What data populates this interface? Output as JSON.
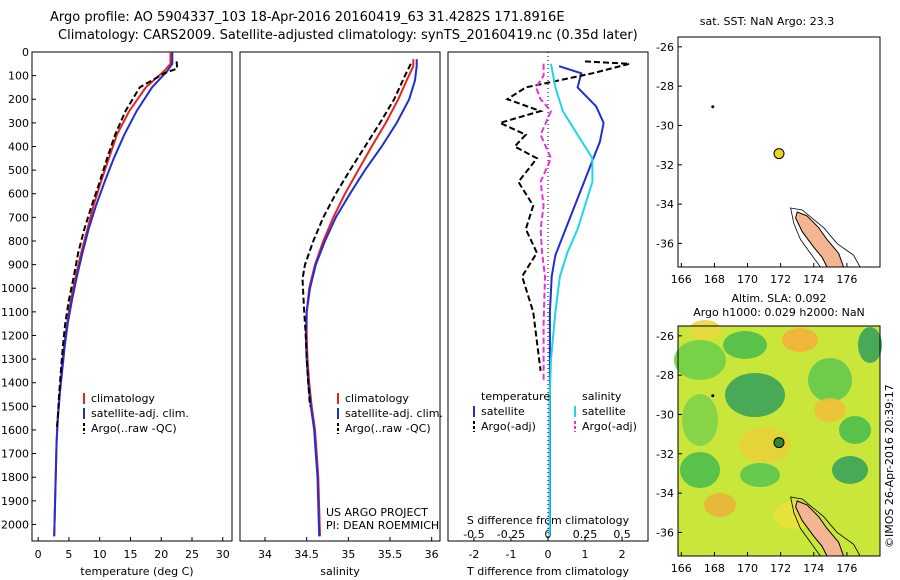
{
  "title": {
    "line1": "Argo profile: AO 5904337_103 18-Apr-2016 20160419_63 31.4282S 171.8916E",
    "line2": "Climatology: CARS2009. Satellite-adjusted climatology: synTS_20160419.nc (0.35d later)"
  },
  "side_label": "©IMOS 26-Apr-2016 20:39:17",
  "colors": {
    "climatology": "#e8231d",
    "satellite": "#1f2fd4",
    "argo": "#000000",
    "sat_salinity": "#1fd6e6",
    "argo_salinity": "#e62ee6",
    "land": "#f3b592"
  },
  "chart_data": [
    {
      "type": "line",
      "id": "temperature",
      "xlabel": "temperature (deg C)",
      "ylabel": "",
      "xlim": [
        -1,
        31.5
      ],
      "ylim": [
        2070,
        0
      ],
      "xticks": [
        0,
        5,
        10,
        15,
        20,
        25,
        30
      ],
      "yticks": [
        0,
        100,
        200,
        300,
        400,
        500,
        600,
        700,
        800,
        900,
        1000,
        1100,
        1200,
        1300,
        1400,
        1500,
        1600,
        1700,
        1800,
        1900,
        2000
      ],
      "legend": [
        "climatology",
        "satellite-adj. clim.",
        "Argo(..raw -QC)"
      ],
      "legend_position": "bottom-center",
      "series": [
        {
          "name": "climatology",
          "style": "solid",
          "color": "#e8231d",
          "x": [
            21.5,
            21.5,
            20.5,
            17.5,
            14.8,
            12.8,
            11.5,
            10.2,
            9.0,
            8.0,
            7.0,
            6.1,
            5.3,
            4.7,
            4.2,
            3.8,
            3.5,
            3.2,
            3.0,
            2.9,
            2.8,
            2.7,
            2.6
          ],
          "y": [
            0,
            50,
            80,
            150,
            250,
            350,
            450,
            550,
            650,
            750,
            850,
            950,
            1050,
            1150,
            1250,
            1350,
            1450,
            1550,
            1650,
            1750,
            1850,
            1950,
            2050
          ]
        },
        {
          "name": "satellite-adj. clim.",
          "style": "solid",
          "color": "#1f2fd4",
          "x": [
            21.8,
            21.8,
            21.0,
            18.5,
            16.0,
            14.0,
            12.3,
            10.8,
            9.4,
            8.2,
            7.2,
            6.3,
            5.5,
            4.8,
            4.3,
            3.9,
            3.5,
            3.2,
            3.0,
            2.9,
            2.8,
            2.7,
            2.6
          ],
          "y": [
            0,
            50,
            80,
            150,
            250,
            350,
            450,
            550,
            650,
            750,
            850,
            950,
            1050,
            1150,
            1250,
            1350,
            1450,
            1550,
            1650,
            1750,
            1850,
            1950,
            2050
          ]
        },
        {
          "name": "Argo(..raw -QC)",
          "style": "dashed",
          "color": "#000000",
          "x": [
            22.5,
            22.6,
            20.5,
            16.5,
            14.2,
            12.5,
            11.2,
            10.0,
            8.7,
            7.5,
            6.5,
            5.8,
            5.0,
            4.4,
            4.0,
            3.7,
            3.4,
            3.2,
            3.0
          ],
          "y": [
            40,
            70,
            90,
            150,
            250,
            350,
            450,
            550,
            650,
            750,
            850,
            950,
            1050,
            1150,
            1250,
            1350,
            1450,
            1550,
            1600
          ]
        }
      ]
    },
    {
      "type": "line",
      "id": "salinity",
      "xlabel": "salinity",
      "xlim": [
        33.7,
        36.1
      ],
      "ylim": [
        2070,
        0
      ],
      "xticks": [
        34,
        34.5,
        35,
        35.5,
        36
      ],
      "legend": [
        "climatology",
        "satellite-adj. clim.",
        "Argo(..raw -QC)"
      ],
      "legend_position": "bottom-center",
      "annotations": [
        "US ARGO PROJECT",
        "PI: DEAN ROEMMICH"
      ],
      "series": [
        {
          "name": "climatology",
          "style": "solid",
          "color": "#e8231d",
          "x": [
            35.78,
            35.78,
            35.7,
            35.6,
            35.45,
            35.28,
            35.12,
            34.96,
            34.82,
            34.7,
            34.6,
            34.53,
            34.5,
            34.5,
            34.51,
            34.53,
            34.56,
            34.6,
            34.62,
            34.64,
            34.66
          ],
          "y": [
            30,
            60,
            120,
            200,
            300,
            400,
            500,
            600,
            700,
            800,
            900,
            1000,
            1100,
            1200,
            1300,
            1400,
            1500,
            1600,
            1700,
            1800,
            2050
          ]
        },
        {
          "name": "satellite-adj. clim.",
          "style": "solid",
          "color": "#1f2fd4",
          "x": [
            35.82,
            35.82,
            35.8,
            35.73,
            35.58,
            35.4,
            35.2,
            35.02,
            34.85,
            34.72,
            34.61,
            34.54,
            34.5,
            34.49,
            34.5,
            34.52,
            34.55,
            34.59,
            34.61,
            34.63,
            34.65
          ],
          "y": [
            30,
            60,
            120,
            200,
            300,
            400,
            500,
            600,
            700,
            800,
            900,
            1000,
            1100,
            1200,
            1300,
            1400,
            1500,
            1600,
            1700,
            1800,
            2050
          ]
        },
        {
          "name": "Argo(..raw -QC)",
          "style": "dashed",
          "color": "#000000",
          "x": [
            35.75,
            35.68,
            35.55,
            35.38,
            35.2,
            35.02,
            34.85,
            34.7,
            34.58,
            34.48,
            34.45,
            34.47,
            34.49,
            34.5,
            34.52,
            34.54
          ],
          "y": [
            50,
            100,
            200,
            300,
            400,
            500,
            600,
            700,
            800,
            900,
            960,
            1100,
            1200,
            1300,
            1400,
            1500
          ]
        }
      ]
    },
    {
      "type": "line",
      "id": "differences",
      "xlabel": "T difference from climatology",
      "xlabel_top": "S difference from climatology",
      "xlim": [
        -2.7,
        2.7
      ],
      "ylim": [
        2070,
        0
      ],
      "xticks": [
        -2,
        -1,
        0,
        1,
        2
      ],
      "xticks_salinity": [
        -0.5,
        -0.25,
        0,
        0.25,
        0.5
      ],
      "legend_groups": [
        {
          "title": "temperature",
          "entries": [
            "satellite",
            "Argo(-adj)"
          ]
        },
        {
          "title": "salinity",
          "entries": [
            "satellite",
            "Argo(-adj)"
          ]
        }
      ],
      "series": [
        {
          "name": "temperature satellite",
          "style": "solid",
          "color": "#1f2fd4",
          "x": [
            0.3,
            0.9,
            0.8,
            1.3,
            1.5,
            1.4,
            1.2,
            1.0,
            0.8,
            0.6,
            0.4,
            0.2,
            0.1,
            0.05,
            0.05,
            0.05,
            0.05,
            0.05
          ],
          "y": [
            60,
            90,
            150,
            230,
            300,
            380,
            460,
            540,
            620,
            700,
            780,
            860,
            950,
            1100,
            1300,
            1500,
            1800,
            2050
          ]
        },
        {
          "name": "temperature Argo(-adj)",
          "style": "dashed",
          "color": "#000000",
          "x": [
            1.0,
            2.2,
            1.2,
            -0.6,
            -1.1,
            -0.2,
            -1.3,
            -0.6,
            -0.9,
            -0.3,
            -0.8,
            -0.4,
            -0.6,
            -0.3,
            -0.7,
            -0.4,
            -0.2
          ],
          "y": [
            40,
            50,
            90,
            150,
            200,
            250,
            300,
            350,
            400,
            450,
            550,
            650,
            750,
            850,
            950,
            1100,
            1350
          ]
        },
        {
          "name": "salinity satellite",
          "style": "solid",
          "color": "#1fd6e6",
          "x": [
            0.02,
            0.05,
            0.1,
            0.2,
            0.3,
            0.3,
            0.25,
            0.2,
            0.13,
            0.08,
            0.05,
            0.02,
            0.01,
            0.01,
            0.01
          ],
          "y": [
            50,
            150,
            250,
            350,
            450,
            550,
            650,
            750,
            850,
            950,
            1100,
            1300,
            1500,
            1800,
            2050
          ]
        },
        {
          "name": "salinity Argo(-adj)",
          "style": "dashed",
          "color": "#e62ee6",
          "x": [
            -0.03,
            -0.03,
            -0.08,
            -0.05,
            0.02,
            -0.05,
            0.02,
            -0.05,
            -0.03,
            -0.05,
            -0.04,
            -0.02,
            -0.03,
            -0.03
          ],
          "y": [
            50,
            100,
            150,
            200,
            250,
            350,
            450,
            550,
            650,
            750,
            850,
            950,
            1150,
            1400
          ]
        }
      ]
    },
    {
      "type": "scatter",
      "id": "sst_map",
      "title": "sat. SST: NaN Argo: 23.3",
      "xlim": [
        165.8,
        178
      ],
      "ylim": [
        -37.2,
        -25.5
      ],
      "xticks": [
        166,
        168,
        170,
        172,
        174,
        176
      ],
      "yticks": [
        -26,
        -28,
        -30,
        -32,
        -34,
        -36
      ],
      "points": [
        {
          "x": 171.9,
          "y": -31.43,
          "label": "Argo",
          "color": "#e8d51d"
        },
        {
          "x": 167.9,
          "y": -29.05,
          "label": "island",
          "color": "#000000"
        }
      ]
    },
    {
      "type": "heatmap",
      "id": "sla_map",
      "title": "Altim. SLA: 0.092",
      "subtitle": "Argo h1000: 0.029 h2000: NaN",
      "xlim": [
        165.8,
        178
      ],
      "ylim": [
        -37.2,
        -25.5
      ],
      "xticks": [
        166,
        168,
        170,
        172,
        174,
        176
      ],
      "yticks": [
        -26,
        -28,
        -30,
        -32,
        -34,
        -36
      ],
      "points": [
        {
          "x": 171.9,
          "y": -31.43,
          "label": "Argo",
          "color": "#2c8a2c"
        },
        {
          "x": 167.9,
          "y": -29.05,
          "label": "island",
          "color": "#000000"
        }
      ]
    }
  ]
}
